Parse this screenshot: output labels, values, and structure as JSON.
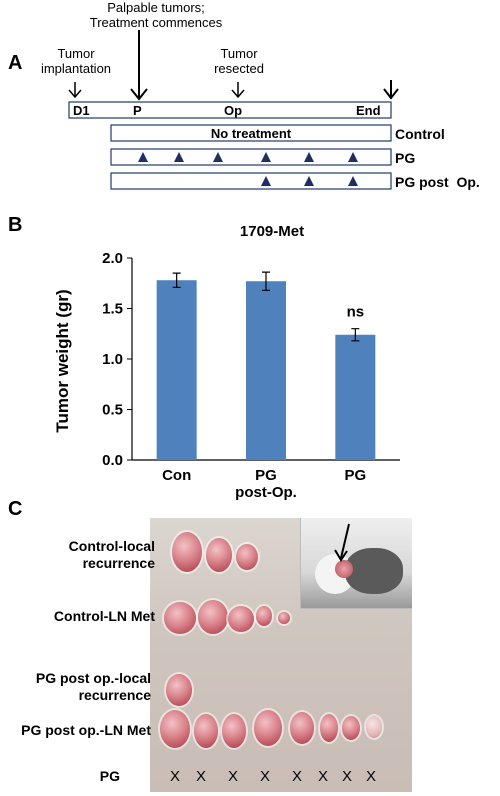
{
  "panel_a": {
    "letter": "A",
    "labels": {
      "implantation": [
        "Tumor",
        "implantation"
      ],
      "palpable": [
        "Palpable tumors;",
        "Treatment commences"
      ],
      "resected": [
        "Tumor",
        "resected"
      ]
    },
    "timeline": {
      "d1": "D1",
      "p": "P",
      "op": "Op",
      "end": "End"
    },
    "rows": [
      {
        "name": "Control",
        "bar_text": "No treatment"
      },
      {
        "name": "PG",
        "bar_text": ""
      },
      {
        "name": "PG post  Op.",
        "bar_text": ""
      }
    ]
  },
  "panel_b": {
    "letter": "B",
    "annotation": "ns"
  },
  "chart_data": {
    "type": "bar",
    "title": "1709-Met",
    "ylabel": "Tumor weight (gr)",
    "xlabel": "",
    "categories": [
      "Con",
      "PG post-Op.",
      "PG"
    ],
    "category_lines": [
      [
        "Con"
      ],
      [
        "PG",
        "post-Op."
      ],
      [
        "PG"
      ]
    ],
    "values": [
      1.78,
      1.77,
      1.24
    ],
    "errors": [
      0.07,
      0.09,
      0.06
    ],
    "ylim": [
      0.0,
      2.0
    ],
    "yticks": [
      "0.0",
      "0.5",
      "1.0",
      "1.5",
      "2.0"
    ],
    "bar_color": "#4f81bd",
    "grid": false
  },
  "panel_c": {
    "letter": "C",
    "row_labels": [
      [
        "Control-local",
        "recurrence"
      ],
      [
        "Control-LN Met"
      ],
      [
        "PG post op.-local",
        "recurrence"
      ],
      [
        "PG post op.-LN Met"
      ],
      [
        "PG"
      ]
    ],
    "x_marks": [
      "X",
      "X",
      "X",
      "X",
      "X",
      "X",
      "X",
      "X"
    ]
  }
}
